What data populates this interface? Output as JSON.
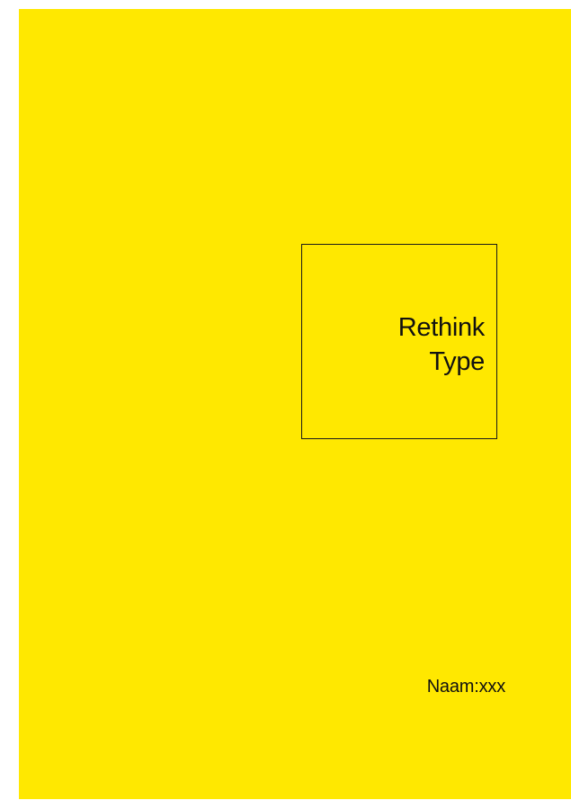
{
  "cover": {
    "background_color": "#ffe800",
    "title_line_1": "Rethink",
    "title_line_2": "Type",
    "name_label": "Naam:xxx"
  }
}
